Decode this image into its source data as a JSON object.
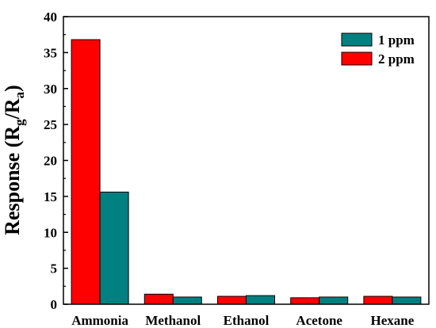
{
  "chart_data": {
    "type": "bar",
    "categories": [
      "Ammonia",
      "Methanol",
      "Ethanol",
      "Acetone",
      "Hexane"
    ],
    "series": [
      {
        "name": "2 ppm",
        "color": "#ff0000",
        "values": [
          36.8,
          1.4,
          1.1,
          0.9,
          1.1
        ]
      },
      {
        "name": "1 ppm",
        "color": "#008080",
        "values": [
          15.6,
          1.0,
          1.2,
          1.0,
          1.0
        ]
      }
    ],
    "legend_order": [
      1,
      0
    ],
    "legend_position": "top-right",
    "ylabel": {
      "main": "Response (R",
      "sub1": "g",
      "mid": "/R",
      "sub2": "a",
      "end": ")"
    },
    "xlabel": "",
    "ylim": [
      0,
      40
    ],
    "yticks": [
      0,
      5,
      10,
      15,
      20,
      25,
      30,
      35,
      40
    ],
    "grid": false
  }
}
